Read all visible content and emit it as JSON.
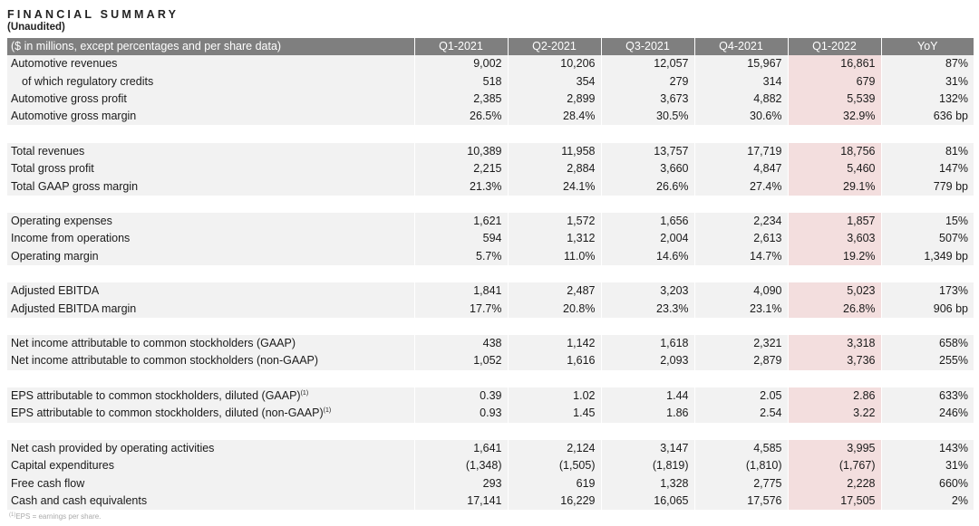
{
  "title": "FINANCIAL SUMMARY",
  "subtitle": "(Unaudited)",
  "table": {
    "header_label": "($ in millions, except percentages and per share data)",
    "columns": [
      "Q1-2021",
      "Q2-2021",
      "Q3-2021",
      "Q4-2021",
      "Q1-2022",
      "YoY"
    ],
    "highlight_column": "Q1-2022",
    "groups": [
      [
        {
          "label": "Automotive revenues",
          "values": [
            "9,002",
            "10,206",
            "12,057",
            "15,967",
            "16,861",
            "87%"
          ]
        },
        {
          "label": "of which regulatory credits",
          "indent": true,
          "values": [
            "518",
            "354",
            "279",
            "314",
            "679",
            "31%"
          ]
        },
        {
          "label": "Automotive gross profit",
          "values": [
            "2,385",
            "2,899",
            "3,673",
            "4,882",
            "5,539",
            "132%"
          ]
        },
        {
          "label": "Automotive gross margin",
          "values": [
            "26.5%",
            "28.4%",
            "30.5%",
            "30.6%",
            "32.9%",
            "636 bp"
          ]
        }
      ],
      [
        {
          "label": "Total revenues",
          "values": [
            "10,389",
            "11,958",
            "13,757",
            "17,719",
            "18,756",
            "81%"
          ]
        },
        {
          "label": "Total gross profit",
          "values": [
            "2,215",
            "2,884",
            "3,660",
            "4,847",
            "5,460",
            "147%"
          ]
        },
        {
          "label": "Total GAAP gross margin",
          "values": [
            "21.3%",
            "24.1%",
            "26.6%",
            "27.4%",
            "29.1%",
            "779 bp"
          ]
        }
      ],
      [
        {
          "label": "Operating expenses",
          "values": [
            "1,621",
            "1,572",
            "1,656",
            "2,234",
            "1,857",
            "15%"
          ]
        },
        {
          "label": "Income from operations",
          "values": [
            "594",
            "1,312",
            "2,004",
            "2,613",
            "3,603",
            "507%"
          ]
        },
        {
          "label": "Operating margin",
          "values": [
            "5.7%",
            "11.0%",
            "14.6%",
            "14.7%",
            "19.2%",
            "1,349 bp"
          ]
        }
      ],
      [
        {
          "label": "Adjusted EBITDA",
          "values": [
            "1,841",
            "2,487",
            "3,203",
            "4,090",
            "5,023",
            "173%"
          ]
        },
        {
          "label": "Adjusted EBITDA margin",
          "values": [
            "17.7%",
            "20.8%",
            "23.3%",
            "23.1%",
            "26.8%",
            "906 bp"
          ]
        }
      ],
      [
        {
          "label": "Net income attributable to common stockholders (GAAP)",
          "values": [
            "438",
            "1,142",
            "1,618",
            "2,321",
            "3,318",
            "658%"
          ]
        },
        {
          "label": "Net income attributable to common stockholders (non-GAAP)",
          "values": [
            "1,052",
            "1,616",
            "2,093",
            "2,879",
            "3,736",
            "255%"
          ]
        }
      ],
      [
        {
          "label": "EPS attributable to common stockholders, diluted (GAAP)",
          "sup": "(1)",
          "values": [
            "0.39",
            "1.02",
            "1.44",
            "2.05",
            "2.86",
            "633%"
          ]
        },
        {
          "label": "EPS attributable to common stockholders, diluted (non-GAAP)",
          "sup": "(1)",
          "values": [
            "0.93",
            "1.45",
            "1.86",
            "2.54",
            "3.22",
            "246%"
          ]
        }
      ],
      [
        {
          "label": "Net cash provided by operating activities",
          "values": [
            "1,641",
            "2,124",
            "3,147",
            "4,585",
            "3,995",
            "143%"
          ]
        },
        {
          "label": "Capital expenditures",
          "values": [
            "(1,348)",
            "(1,505)",
            "(1,819)",
            "(1,810)",
            "(1,767)",
            "31%"
          ]
        },
        {
          "label": "Free cash flow",
          "values": [
            "293",
            "619",
            "1,328",
            "2,775",
            "2,228",
            "660%"
          ]
        },
        {
          "label": "Cash and cash equivalents",
          "values": [
            "17,141",
            "16,229",
            "16,065",
            "17,576",
            "17,505",
            "2%"
          ]
        }
      ]
    ]
  },
  "footnote": {
    "marker": "(1)",
    "text": "EPS = earnings per share."
  },
  "colors": {
    "header_bg": "#7f7f7f",
    "row_bg": "#f2f2f2",
    "highlight_bg": "#f3dede"
  }
}
